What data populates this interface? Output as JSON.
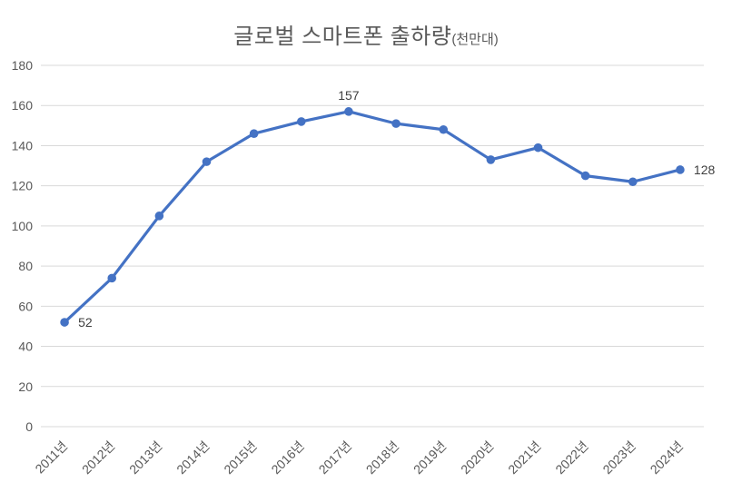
{
  "chart_data": {
    "type": "line",
    "title": "글로벌 스마트폰 출하량",
    "title_suffix": "(천만대)",
    "categories": [
      "2011년",
      "2012년",
      "2013년",
      "2014년",
      "2015년",
      "2016년",
      "2017년",
      "2018년",
      "2019년",
      "2020년",
      "2021년",
      "2022년",
      "2023년",
      "2024년"
    ],
    "series": [
      {
        "name": "글로벌 스마트폰 출하량",
        "values": [
          52,
          74,
          105,
          132,
          146,
          152,
          157,
          151,
          148,
          133,
          139,
          125,
          122,
          128
        ]
      }
    ],
    "ylim": [
      0,
      180
    ],
    "ytick_step": 20,
    "yticks": [
      0,
      20,
      40,
      60,
      80,
      100,
      120,
      140,
      160,
      180
    ],
    "grid": true,
    "legend": false,
    "data_labels": [
      {
        "index": 0,
        "text": "52",
        "position": "right"
      },
      {
        "index": 6,
        "text": "157",
        "position": "above"
      },
      {
        "index": 13,
        "text": "128",
        "position": "right"
      }
    ],
    "colors": {
      "line": "#4472C4",
      "marker": "#4472C4",
      "grid": "#D9D9D9",
      "axis_text": "#595959",
      "title_text": "#595959",
      "data_label_text": "#404040",
      "background": "#FFFFFF"
    }
  }
}
